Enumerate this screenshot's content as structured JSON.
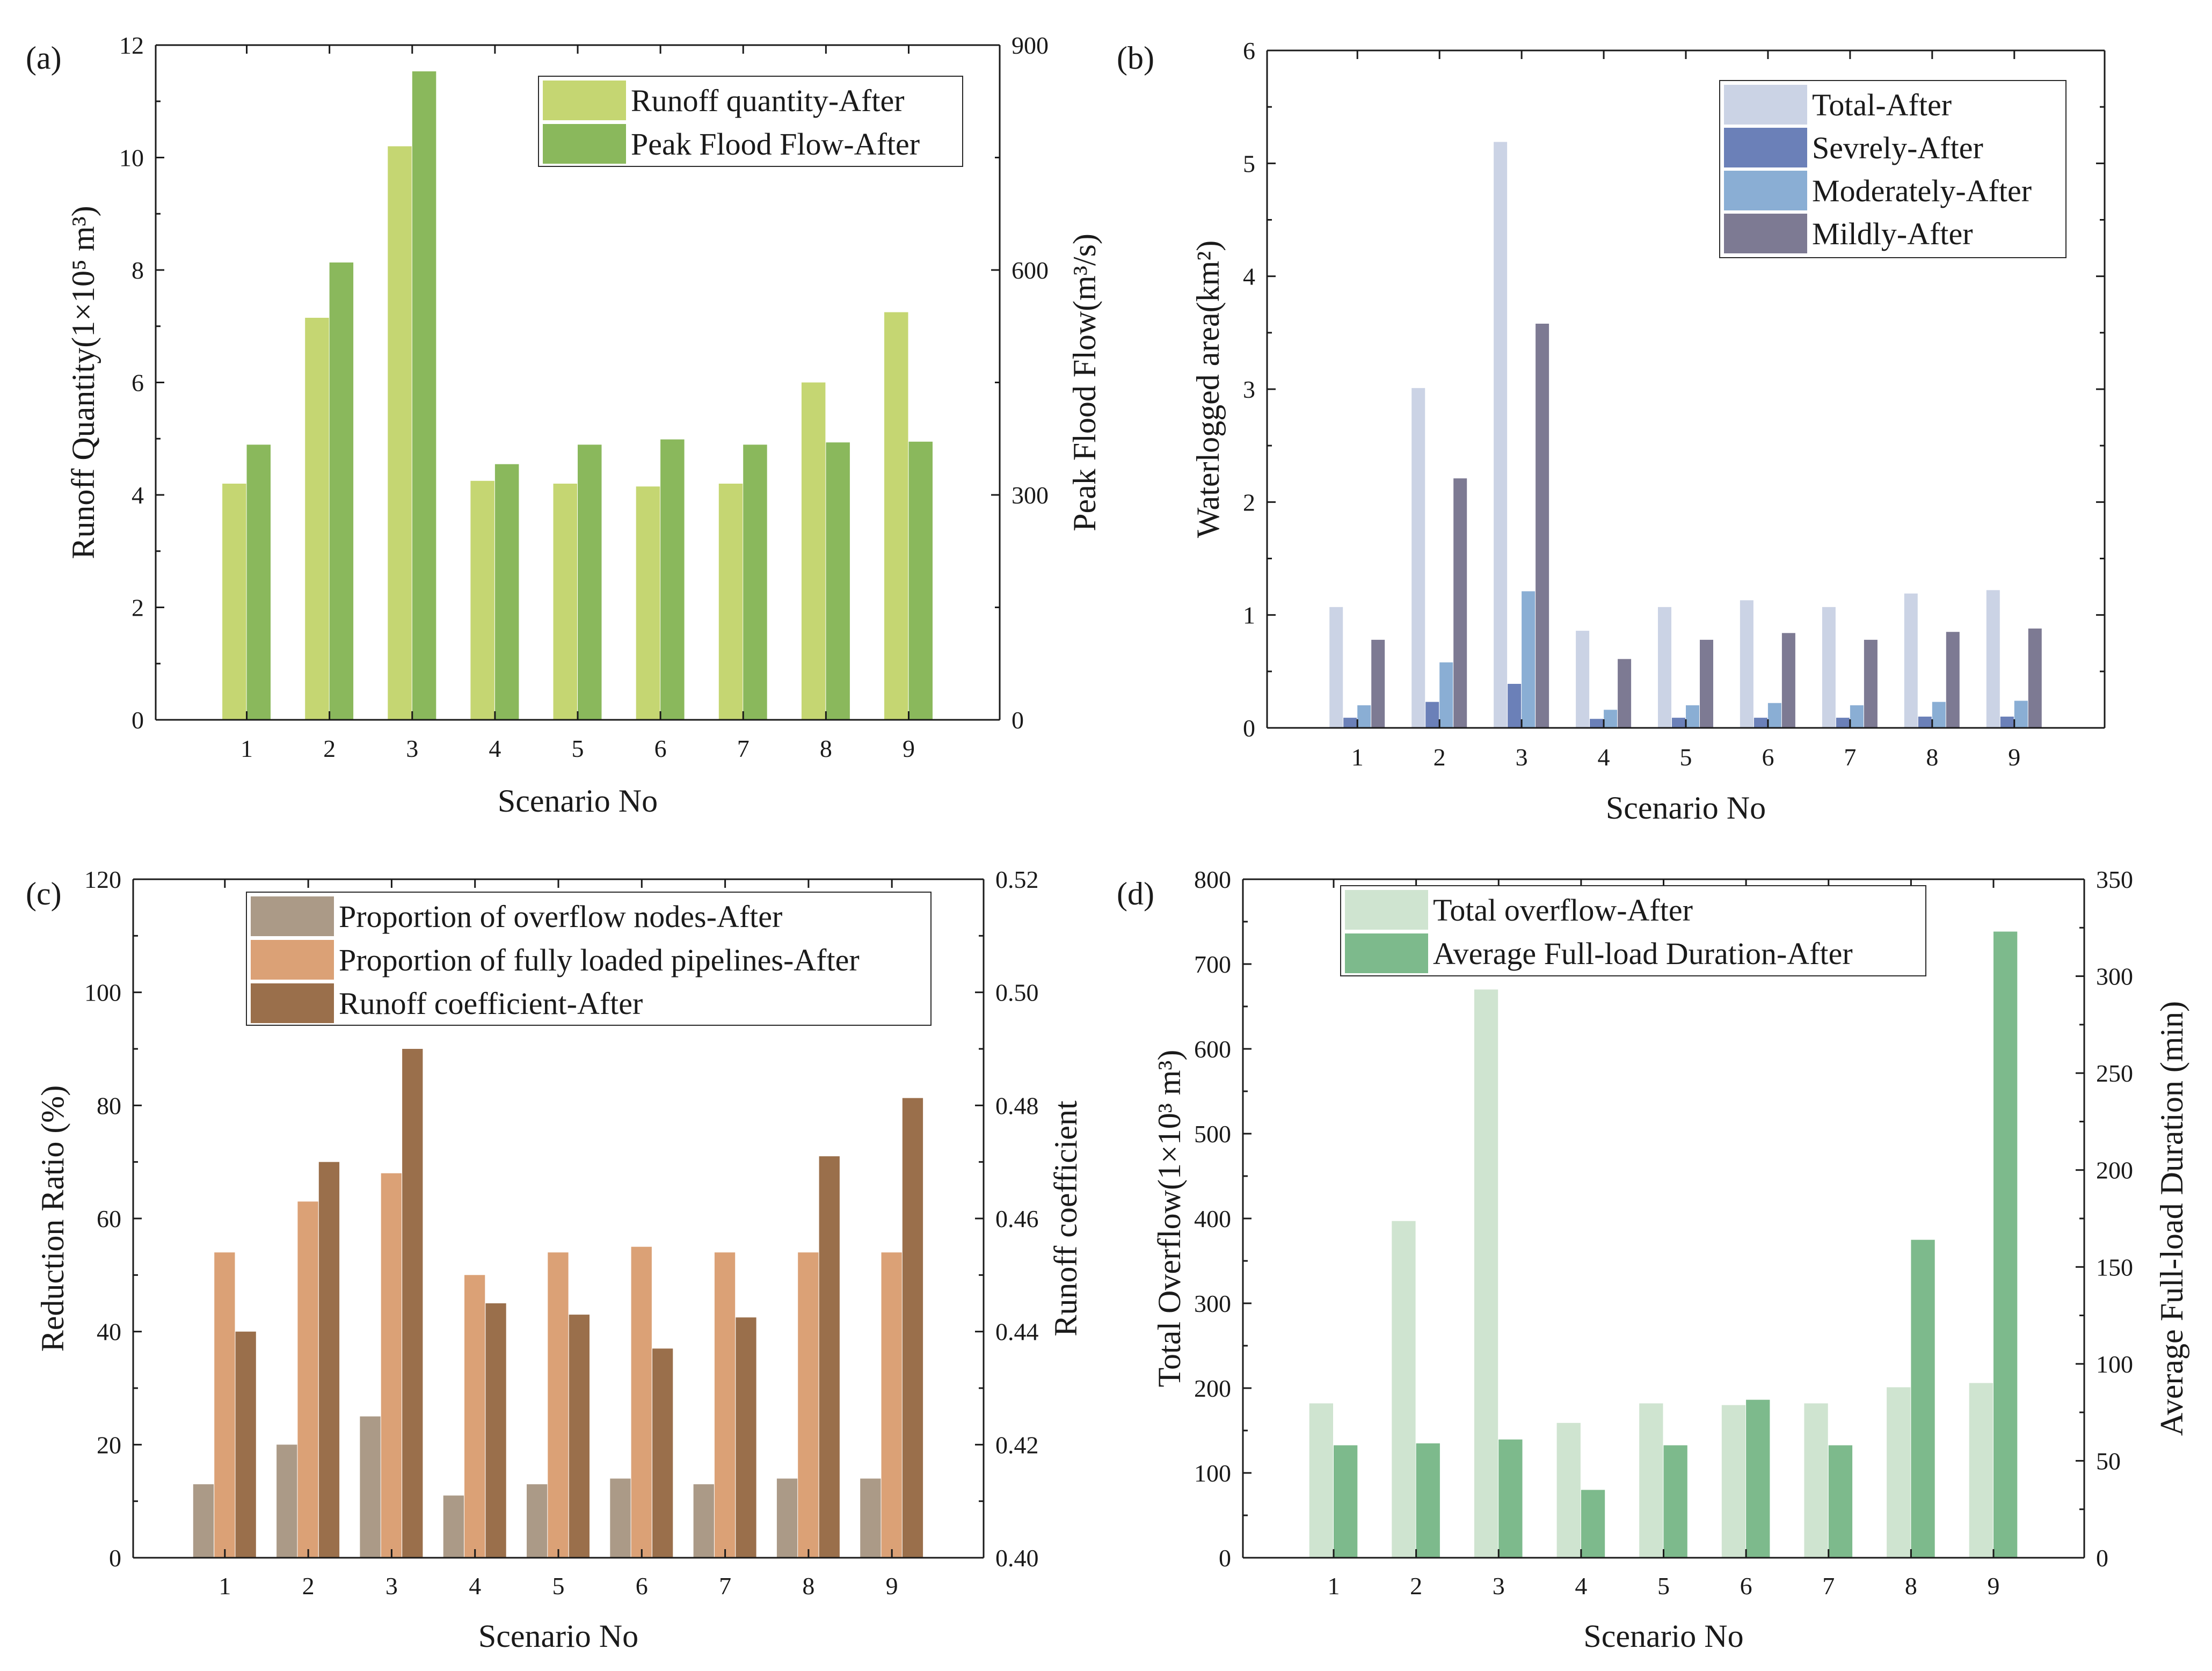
{
  "chart_data": [
    {
      "panel": "(a)",
      "type": "bar",
      "categories": [
        "1",
        "2",
        "3",
        "4",
        "5",
        "6",
        "7",
        "8",
        "9"
      ],
      "xlabel": "Scenario No",
      "ylabel": "Runoff Quantity(1×10⁵ m³)",
      "y2label": "Peak Flood Flow(m³/s)",
      "ylim": [
        0,
        12
      ],
      "y2lim": [
        0,
        900
      ],
      "yticks": [
        "0",
        "2",
        "4",
        "6",
        "8",
        "10",
        "12"
      ],
      "y2ticks": [
        "0",
        "300",
        "600",
        "900"
      ],
      "series": [
        {
          "name": "Runoff quantity-After",
          "axis": "left",
          "color": "#c5d672",
          "values": [
            4.2,
            7.15,
            10.2,
            4.25,
            4.2,
            4.15,
            4.2,
            6.0,
            7.25
          ]
        },
        {
          "name": "Peak Flood Flow-After",
          "axis": "right",
          "color": "#8ab85c",
          "values": [
            367,
            610,
            865,
            341,
            367,
            374,
            367,
            370,
            371
          ]
        }
      ]
    },
    {
      "panel": "(b)",
      "type": "bar",
      "categories": [
        "1",
        "2",
        "3",
        "4",
        "5",
        "6",
        "7",
        "8",
        "9"
      ],
      "xlabel": "Scenario No",
      "ylabel": "Waterlogged area(km²)",
      "ylim": [
        0,
        6
      ],
      "yticks": [
        "0",
        "1",
        "2",
        "3",
        "4",
        "5",
        "6"
      ],
      "series": [
        {
          "name": "Total-After",
          "axis": "left",
          "color": "#cbd3e5",
          "values": [
            1.07,
            3.01,
            5.19,
            0.86,
            1.07,
            1.13,
            1.07,
            1.19,
            1.22
          ]
        },
        {
          "name": "Sevrely-After",
          "axis": "left",
          "color": "#6b80b8",
          "values": [
            0.09,
            0.23,
            0.39,
            0.08,
            0.09,
            0.09,
            0.09,
            0.1,
            0.1
          ]
        },
        {
          "name": "Moderately-After",
          "axis": "left",
          "color": "#8aaed4",
          "values": [
            0.2,
            0.58,
            1.21,
            0.16,
            0.2,
            0.22,
            0.2,
            0.23,
            0.24
          ]
        },
        {
          "name": "Mildly-After",
          "axis": "left",
          "color": "#7d7a93",
          "values": [
            0.78,
            2.21,
            3.58,
            0.61,
            0.78,
            0.84,
            0.78,
            0.85,
            0.88
          ]
        }
      ]
    },
    {
      "panel": "(c)",
      "type": "bar",
      "categories": [
        "1",
        "2",
        "3",
        "4",
        "5",
        "6",
        "7",
        "8",
        "9"
      ],
      "xlabel": "Scenario No",
      "ylabel": "Reduction Ratio (%)",
      "y2label": "Runoff coefficient",
      "ylim": [
        0,
        120
      ],
      "y2lim": [
        0.4,
        0.52
      ],
      "yticks": [
        "0",
        "20",
        "40",
        "60",
        "80",
        "100",
        "120"
      ],
      "y2ticks": [
        "0.40",
        "0.42",
        "0.44",
        "0.46",
        "0.48",
        "0.50",
        "0.52"
      ],
      "series": [
        {
          "name": "Proportion of overflow nodes-After",
          "axis": "left",
          "color": "#ab9a87",
          "values": [
            13,
            20,
            25,
            11,
            13,
            14,
            13,
            14,
            14
          ]
        },
        {
          "name": "Proportion of fully loaded pipelines-After",
          "axis": "left",
          "color": "#dba176",
          "values": [
            54,
            63,
            68,
            50,
            54,
            55,
            54,
            54,
            54
          ]
        },
        {
          "name": "Runoff coefficient-After",
          "axis": "right",
          "color": "#9a6f4b",
          "values": [
            0.44,
            0.47,
            0.49,
            0.445,
            0.443,
            0.437,
            0.4425,
            0.471,
            0.4813
          ]
        }
      ]
    },
    {
      "panel": "(d)",
      "type": "bar",
      "categories": [
        "1",
        "2",
        "3",
        "4",
        "5",
        "6",
        "7",
        "8",
        "9"
      ],
      "xlabel": "Scenario No",
      "ylabel": "Total Overflow(1×10³ m³)",
      "y2label": "Average Full-load Duration (min)",
      "ylim": [
        0,
        800
      ],
      "y2lim": [
        0,
        350
      ],
      "yticks": [
        "0",
        "100",
        "200",
        "300",
        "400",
        "500",
        "600",
        "700",
        "800"
      ],
      "y2ticks": [
        "0",
        "50",
        "100",
        "150",
        "200",
        "250",
        "300",
        "350"
      ],
      "series": [
        {
          "name": "Total overflow-After",
          "axis": "left",
          "color": "#cfe4d0",
          "values": [
            182,
            397,
            670,
            159,
            182,
            180,
            182,
            201,
            206
          ]
        },
        {
          "name": "Average Full-load Duration-After",
          "axis": "right",
          "color": "#7dba8c",
          "values": [
            58,
            59,
            61,
            35,
            58,
            81.5,
            58,
            164,
            323
          ]
        }
      ]
    }
  ]
}
